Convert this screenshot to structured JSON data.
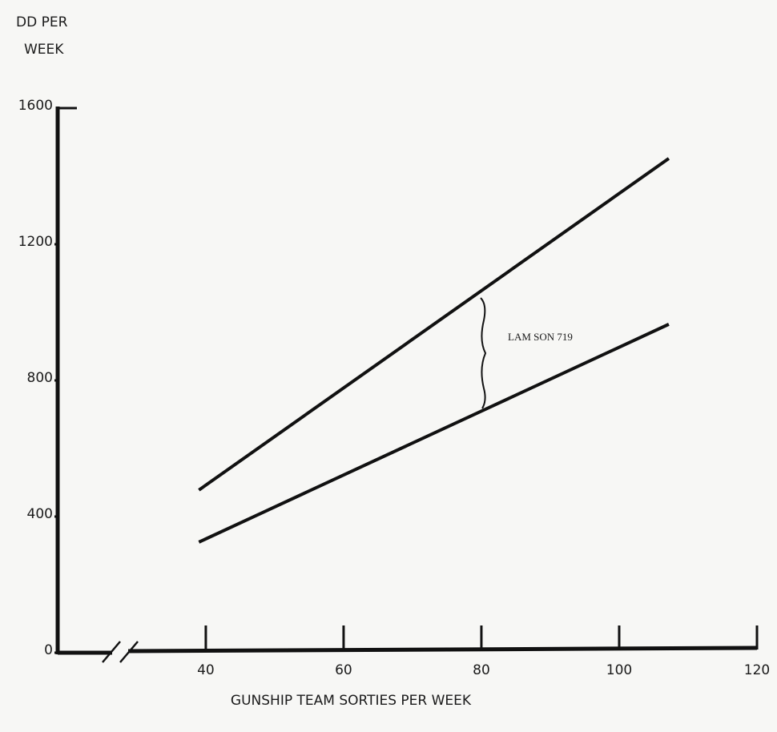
{
  "chart_data": {
    "type": "line",
    "y_label": [
      "DD PER",
      "WEEK"
    ],
    "x_label": "GUNSHIP TEAM SORTIES PER WEEK",
    "annotation": "LAM SON 719",
    "series": [
      {
        "color": "#111111",
        "x": [
          39,
          107.2
        ],
        "values": [
          478,
          1452
        ]
      },
      {
        "color": "#111111",
        "x": [
          39,
          107.2
        ],
        "values": [
          325,
          965
        ]
      }
    ],
    "xlim": [
      18.5,
      120
    ],
    "xticks": [
      40,
      60,
      80,
      100,
      120
    ],
    "ylim": [
      0,
      1600
    ],
    "yticks": [
      0,
      400,
      800,
      1200,
      1600
    ],
    "grid": false
  }
}
